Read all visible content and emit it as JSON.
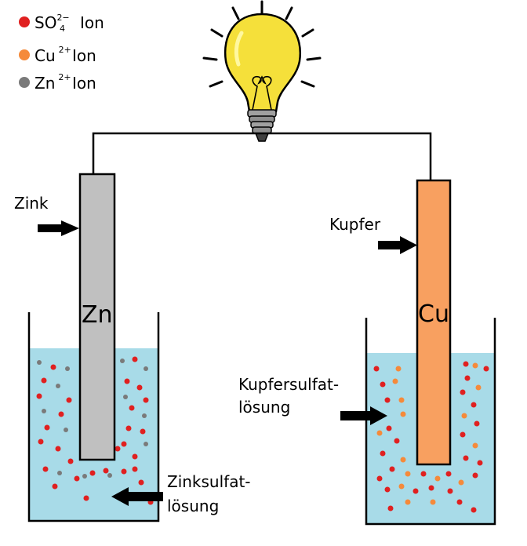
{
  "legend": [
    {
      "formula": "SO",
      "sub": "4",
      "sup": "2−",
      "suffix": "Ion",
      "color": "#e02020"
    },
    {
      "formula": "Cu",
      "sub": "",
      "sup": "2+",
      "suffix": "Ion",
      "color": "#f58a3a"
    },
    {
      "formula": "Zn",
      "sub": "",
      "sup": "2+",
      "suffix": "Ion",
      "color": "#7a7a7a"
    }
  ],
  "labels": {
    "zink": "Zink",
    "kupfer": "Kupfer",
    "zn_symbol": "Zn",
    "cu_symbol": "Cu",
    "kupfersulfat_line1": "Kupfersulfat-",
    "kupfersulfat_line2": "lösung",
    "zinksulfat_line1": "Zinksulfat-",
    "zinksulfat_line2": "lösung"
  },
  "colors": {
    "solution": "#a8dbe8",
    "zinc_electrode": "#c0c0c0",
    "copper_electrode": "#f8a060",
    "bulb_glass": "#f5e03a",
    "wire": "#000000"
  },
  "icons": {
    "light_bulb": "light-bulb-icon"
  }
}
